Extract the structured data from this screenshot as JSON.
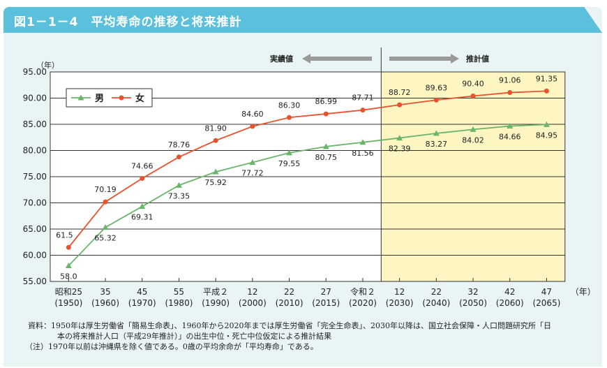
{
  "title": "図1－1－4　平均寿命の推移と将来推計",
  "chart_data": {
    "type": "line",
    "ylabel": "（年）",
    "xunit": "（年）",
    "ylim": [
      55,
      95
    ],
    "yticks": [
      "55.00",
      "60.00",
      "65.00",
      "70.00",
      "75.00",
      "80.00",
      "85.00",
      "90.00",
      "95.00"
    ],
    "grid": true,
    "legend": "top-left",
    "categories": [
      [
        "昭和25",
        "(1950)"
      ],
      [
        "35",
        "(1960)"
      ],
      [
        "45",
        "(1970)"
      ],
      [
        "55",
        "(1980)"
      ],
      [
        "平成２",
        "(1990)"
      ],
      [
        "12",
        "(2000)"
      ],
      [
        "22",
        "(2010)"
      ],
      [
        "27",
        "(2015)"
      ],
      [
        "令和２",
        "(2020)"
      ],
      [
        "12",
        "(2030)"
      ],
      [
        "22",
        "(2040)"
      ],
      [
        "32",
        "(2050)"
      ],
      [
        "42",
        "(2060)"
      ],
      [
        "47",
        "(2065)"
      ]
    ],
    "series": [
      {
        "name": "男",
        "color": "#6bb56b",
        "marker": "triangle",
        "values": [
          58.0,
          65.32,
          69.31,
          73.35,
          75.92,
          77.72,
          79.55,
          80.75,
          81.56,
          82.39,
          83.27,
          84.02,
          84.66,
          84.95
        ],
        "labels": [
          "58.0",
          "65.32",
          "69.31",
          "73.35",
          "75.92",
          "77.72",
          "79.55",
          "80.75",
          "81.56",
          "82.39",
          "83.27",
          "84.02",
          "84.66",
          "84.95"
        ]
      },
      {
        "name": "女",
        "color": "#e8532f",
        "marker": "circle",
        "values": [
          61.5,
          70.19,
          74.66,
          78.76,
          81.9,
          84.6,
          86.3,
          86.99,
          87.71,
          88.72,
          89.63,
          90.4,
          91.06,
          91.35
        ],
        "labels": [
          "61.5",
          "70.19",
          "74.66",
          "78.76",
          "81.90",
          "84.60",
          "86.30",
          "86.99",
          "87.71",
          "88.72",
          "89.63",
          "90.40",
          "91.06",
          "91.35"
        ]
      }
    ],
    "actual_label": "実績値",
    "projection_label": "推計値",
    "projection_start_index": 9,
    "projection_color": "#fdf6c3"
  },
  "notes": {
    "source_label": "資料：",
    "source": "1950年は厚生労働省「簡易生命表」、1960年から2020年までは厚生労働省「完全生命表」、2030年以降は、国立社会保障・人口問題研究所「日",
    "source2": "本の将来推計人口（平成29年推計）」の出生中位・死亡中位仮定による推計結果",
    "note_label": "（注）",
    "note": "1970年以前は沖縄県を除く値である。0歳の平均余命が「平均寿命」である。"
  }
}
